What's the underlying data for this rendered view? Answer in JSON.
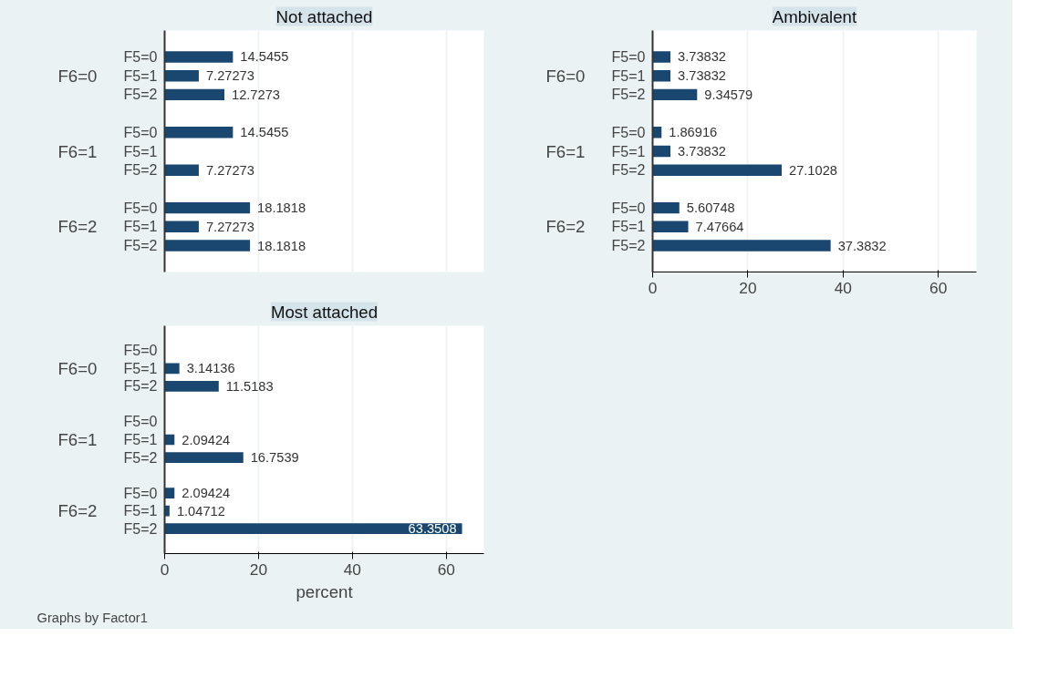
{
  "chart_data": [
    {
      "type": "bar",
      "orientation": "horizontal",
      "title": "Not attached",
      "categories": [
        "F5=0",
        "F5=1",
        "F5=2",
        "F5=0",
        "F5=1",
        "F5=2",
        "F5=0",
        "F5=1",
        "F5=2"
      ],
      "values": [
        14.5455,
        7.27273,
        12.7273,
        14.5455,
        null,
        7.27273,
        18.1818,
        7.27273,
        18.1818
      ],
      "color": "#1a476f",
      "annotations": [
        "F6=0",
        "F6=1",
        "F6=2"
      ],
      "xlim": [
        0,
        68
      ],
      "xticks": [
        0,
        20,
        40,
        60
      ],
      "grid": "x",
      "data_labels": true,
      "tick_labels": "y"
    },
    {
      "type": "bar",
      "orientation": "horizontal",
      "title": "Ambivalent",
      "categories": [
        "F5=0",
        "F5=1",
        "F5=2",
        "F5=0",
        "F5=1",
        "F5=2",
        "F5=0",
        "F5=1",
        "F5=2"
      ],
      "values": [
        3.73832,
        3.73832,
        9.34579,
        1.86916,
        3.73832,
        27.1028,
        5.60748,
        7.47664,
        37.3832
      ],
      "color": "#1a476f",
      "annotations": [
        "F6=0",
        "F6=1",
        "F6=2"
      ],
      "xlim": [
        0,
        68
      ],
      "xticks": [
        0,
        20,
        40,
        60
      ],
      "grid": "x",
      "data_labels": true
    },
    {
      "type": "bar",
      "orientation": "horizontal",
      "title": "Most attached",
      "xlabel": "percent",
      "categories": [
        "F5=0",
        "F5=1",
        "F5=2",
        "F5=0",
        "F5=1",
        "F5=2",
        "F5=0",
        "F5=1",
        "F5=2"
      ],
      "values": [
        null,
        3.14136,
        11.5183,
        null,
        2.09424,
        16.7539,
        2.09424,
        1.04712,
        63.3508
      ],
      "color": "#1a476f",
      "annotations": [
        "F6=0",
        "F6=1",
        "F6=2",
        "Graphs by Factor1"
      ],
      "xlim": [
        0,
        68
      ],
      "xticks": [
        0,
        20,
        40,
        60
      ],
      "grid": "x",
      "data_labels": true
    }
  ]
}
